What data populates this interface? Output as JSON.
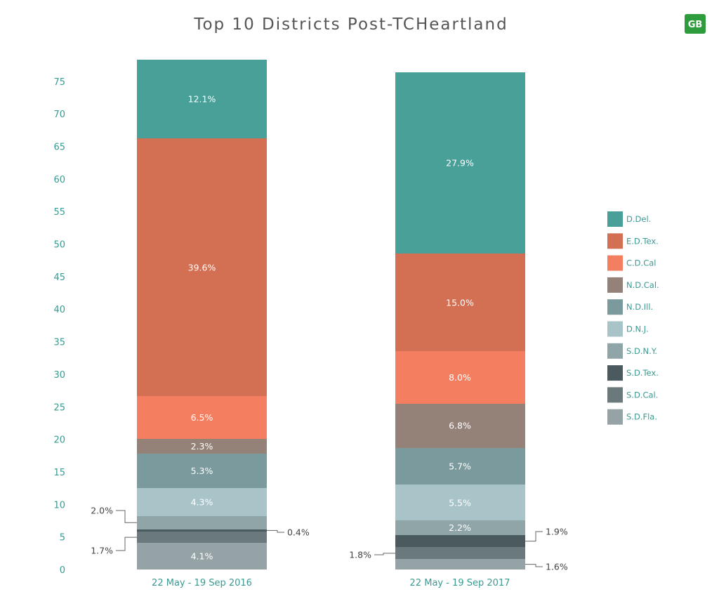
{
  "chart_data": {
    "type": "bar",
    "stacked": true,
    "title": "Top 10 Districts Post-TCHeartland",
    "xlabel": "",
    "ylabel": "",
    "ylim": [
      0,
      78
    ],
    "yticks": [
      0,
      5,
      10,
      15,
      20,
      25,
      30,
      35,
      40,
      45,
      50,
      55,
      60,
      65,
      70,
      75
    ],
    "grid": false,
    "legend_position": "right",
    "categories": [
      "22 May - 19 Sep 2016",
      "22 May - 19 Sep 2017"
    ],
    "series": [
      {
        "name": "S.D.Fla.",
        "color": "#95a3a6",
        "values": [
          4.1,
          1.6
        ],
        "labels": [
          "4.1%",
          "1.6%"
        ]
      },
      {
        "name": "S.D.Cal.",
        "color": "#6a7a7c",
        "values": [
          1.7,
          1.8
        ],
        "labels": [
          "1.7%",
          "1.8%"
        ]
      },
      {
        "name": "S.D.Tex.",
        "color": "#4a5a5f",
        "values": [
          0.4,
          1.9
        ],
        "labels": [
          "0.4%",
          "1.9%"
        ]
      },
      {
        "name": "S.D.N.Y.",
        "color": "#8fa5a8",
        "values": [
          2.0,
          2.2
        ],
        "labels": [
          "2.0%",
          "2.2%"
        ]
      },
      {
        "name": "D.N.J.",
        "color": "#a8c4c8",
        "values": [
          4.3,
          5.5
        ],
        "labels": [
          "4.3%",
          "5.5%"
        ]
      },
      {
        "name": "N.D.Ill.",
        "color": "#7b9a9d",
        "values": [
          5.3,
          5.7
        ],
        "labels": [
          "5.3%",
          "5.7%"
        ]
      },
      {
        "name": "N.D.Cal.",
        "color": "#948279",
        "values": [
          2.3,
          6.8
        ],
        "labels": [
          "2.3%",
          "6.8%"
        ]
      },
      {
        "name": "C.D.Cal",
        "color": "#f47f60",
        "values": [
          6.5,
          8.0
        ],
        "labels": [
          "6.5%",
          "8.0%"
        ]
      },
      {
        "name": "E.D.Tex.",
        "color": "#d37054",
        "values": [
          39.6,
          15.0
        ],
        "labels": [
          "39.6%",
          "15.0%"
        ]
      },
      {
        "name": "D.Del.",
        "color": "#48a098",
        "values": [
          12.1,
          27.9
        ],
        "labels": [
          "12.1%",
          "27.9%"
        ]
      }
    ],
    "legend_order": [
      "D.Del.",
      "E.D.Tex.",
      "C.D.Cal",
      "N.D.Cal.",
      "N.D.Ill.",
      "D.N.J.",
      "S.D.N.Y.",
      "S.D.Tex.",
      "S.D.Cal.",
      "S.D.Fla."
    ],
    "external_labels": [
      {
        "category": 0,
        "series": "S.D.N.Y.",
        "side": "left"
      },
      {
        "category": 0,
        "series": "S.D.Cal.",
        "side": "left"
      },
      {
        "category": 0,
        "series": "S.D.Tex.",
        "side": "right"
      },
      {
        "category": 1,
        "series": "S.D.Tex.",
        "side": "right"
      },
      {
        "category": 1,
        "series": "S.D.Cal.",
        "side": "left"
      },
      {
        "category": 1,
        "series": "S.D.Fla.",
        "side": "right"
      }
    ]
  },
  "logo": {
    "text": "GB",
    "color": "#2e9c3c"
  }
}
